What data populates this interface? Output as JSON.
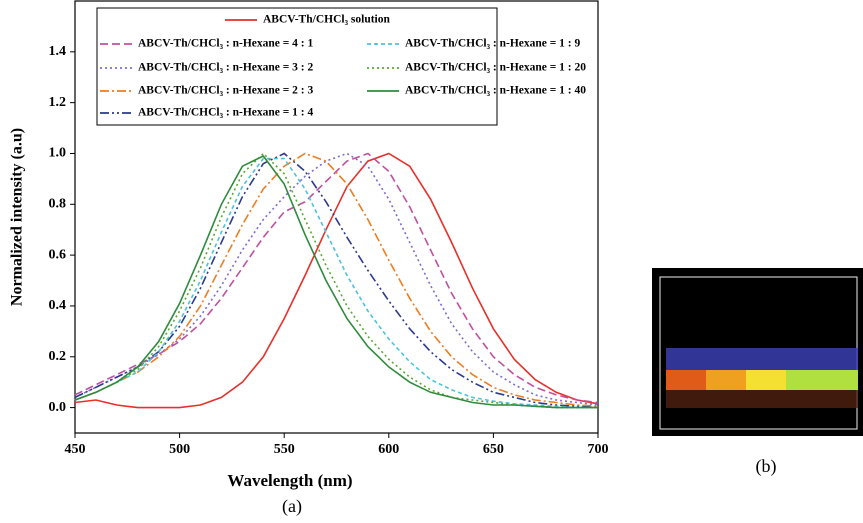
{
  "chart_data": {
    "type": "line",
    "xlabel": "Wavelength (nm)",
    "ylabel": "Normalized intensity (a.u)",
    "xlim": [
      450,
      700
    ],
    "xticks": [
      450,
      500,
      550,
      600,
      650,
      700
    ],
    "ylim": [
      -0.1,
      1.6
    ],
    "yticks": [
      {
        "value": 0,
        "label": "0.0"
      },
      0.2,
      0.4,
      0.6,
      0.8,
      {
        "value": 1,
        "label": "1.0"
      },
      1.2,
      1.4
    ],
    "x": [
      450,
      460,
      470,
      480,
      490,
      500,
      510,
      520,
      530,
      540,
      550,
      560,
      570,
      580,
      590,
      600,
      610,
      620,
      630,
      640,
      650,
      660,
      670,
      680,
      690,
      700
    ],
    "series": [
      {
        "name": "ABCV-Th/CHCl₃ solution",
        "color": "#e8302a",
        "style": "solid",
        "values": [
          0.02,
          0.03,
          0.01,
          0,
          0,
          0,
          0.01,
          0.04,
          0.1,
          0.2,
          0.35,
          0.52,
          0.7,
          0.87,
          0.97,
          1.0,
          0.95,
          0.82,
          0.65,
          0.47,
          0.31,
          0.19,
          0.11,
          0.06,
          0.03,
          0.015
        ]
      },
      {
        "name": "ABCV-Th/CHCl₃ : n-Hexane = 4 : 1",
        "color": "#c0509e",
        "style": "dash",
        "values": [
          0.05,
          0.09,
          0.13,
          0.17,
          0.21,
          0.26,
          0.33,
          0.43,
          0.55,
          0.67,
          0.77,
          0.81,
          0.89,
          0.97,
          1.0,
          0.93,
          0.79,
          0.62,
          0.45,
          0.31,
          0.2,
          0.13,
          0.08,
          0.05,
          0.03,
          0.02
        ]
      },
      {
        "name": "ABCV-Th/CHCl₃ : n-Hexane = 3 : 2",
        "color": "#7f6ccf",
        "style": "dot",
        "values": [
          0.04,
          0.08,
          0.12,
          0.16,
          0.21,
          0.27,
          0.36,
          0.48,
          0.62,
          0.74,
          0.83,
          0.91,
          0.97,
          1.0,
          0.95,
          0.82,
          0.65,
          0.48,
          0.33,
          0.22,
          0.14,
          0.09,
          0.05,
          0.03,
          0.02,
          0.01
        ]
      },
      {
        "name": "ABCV-Th/CHCl₃ : n-Hexane = 2 : 3",
        "color": "#ee7d22",
        "style": "dashdot",
        "values": [
          0.03,
          0.06,
          0.1,
          0.14,
          0.2,
          0.28,
          0.4,
          0.56,
          0.72,
          0.86,
          0.95,
          1.0,
          0.97,
          0.88,
          0.74,
          0.58,
          0.43,
          0.3,
          0.2,
          0.13,
          0.08,
          0.05,
          0.03,
          0.02,
          0.01,
          0.005
        ]
      },
      {
        "name": "ABCV-Th/CHCl₃ : n-Hexane = 1 : 4",
        "color": "#2b3a8c",
        "style": "dashdotdot",
        "values": [
          0.04,
          0.08,
          0.12,
          0.16,
          0.22,
          0.32,
          0.47,
          0.65,
          0.83,
          0.96,
          1.0,
          0.93,
          0.81,
          0.67,
          0.54,
          0.42,
          0.31,
          0.22,
          0.15,
          0.1,
          0.06,
          0.04,
          0.02,
          0.01,
          0.005,
          0
        ]
      },
      {
        "name": "ABCV-Th/CHCl₃ : n-Hexane = 1 : 9",
        "color": "#4cc3dc",
        "style": "shortdash",
        "values": [
          0.03,
          0.06,
          0.1,
          0.14,
          0.22,
          0.34,
          0.5,
          0.69,
          0.87,
          0.98,
          0.98,
          0.86,
          0.69,
          0.52,
          0.38,
          0.27,
          0.18,
          0.11,
          0.07,
          0.04,
          0.025,
          0.015,
          0.01,
          0.005,
          0,
          0
        ]
      },
      {
        "name": "ABCV-Th/CHCl₃ : n-Hexane = 1 : 20",
        "color": "#5aa832",
        "style": "dot",
        "values": [
          0.03,
          0.06,
          0.1,
          0.15,
          0.24,
          0.38,
          0.55,
          0.75,
          0.92,
          1.0,
          0.92,
          0.74,
          0.56,
          0.4,
          0.28,
          0.19,
          0.12,
          0.07,
          0.04,
          0.03,
          0.02,
          0.01,
          0.005,
          0,
          0,
          0
        ]
      },
      {
        "name": "ABCV-Th/CHCl₃ : n-Hexane = 1 : 40",
        "color": "#2e8b3e",
        "style": "solid",
        "values": [
          0.03,
          0.06,
          0.1,
          0.16,
          0.26,
          0.41,
          0.6,
          0.8,
          0.95,
          0.99,
          0.88,
          0.68,
          0.5,
          0.35,
          0.24,
          0.16,
          0.1,
          0.06,
          0.04,
          0.02,
          0.01,
          0.01,
          0.005,
          0,
          0,
          0
        ]
      }
    ],
    "annotations": [
      "(a)",
      "(b)"
    ]
  }
}
